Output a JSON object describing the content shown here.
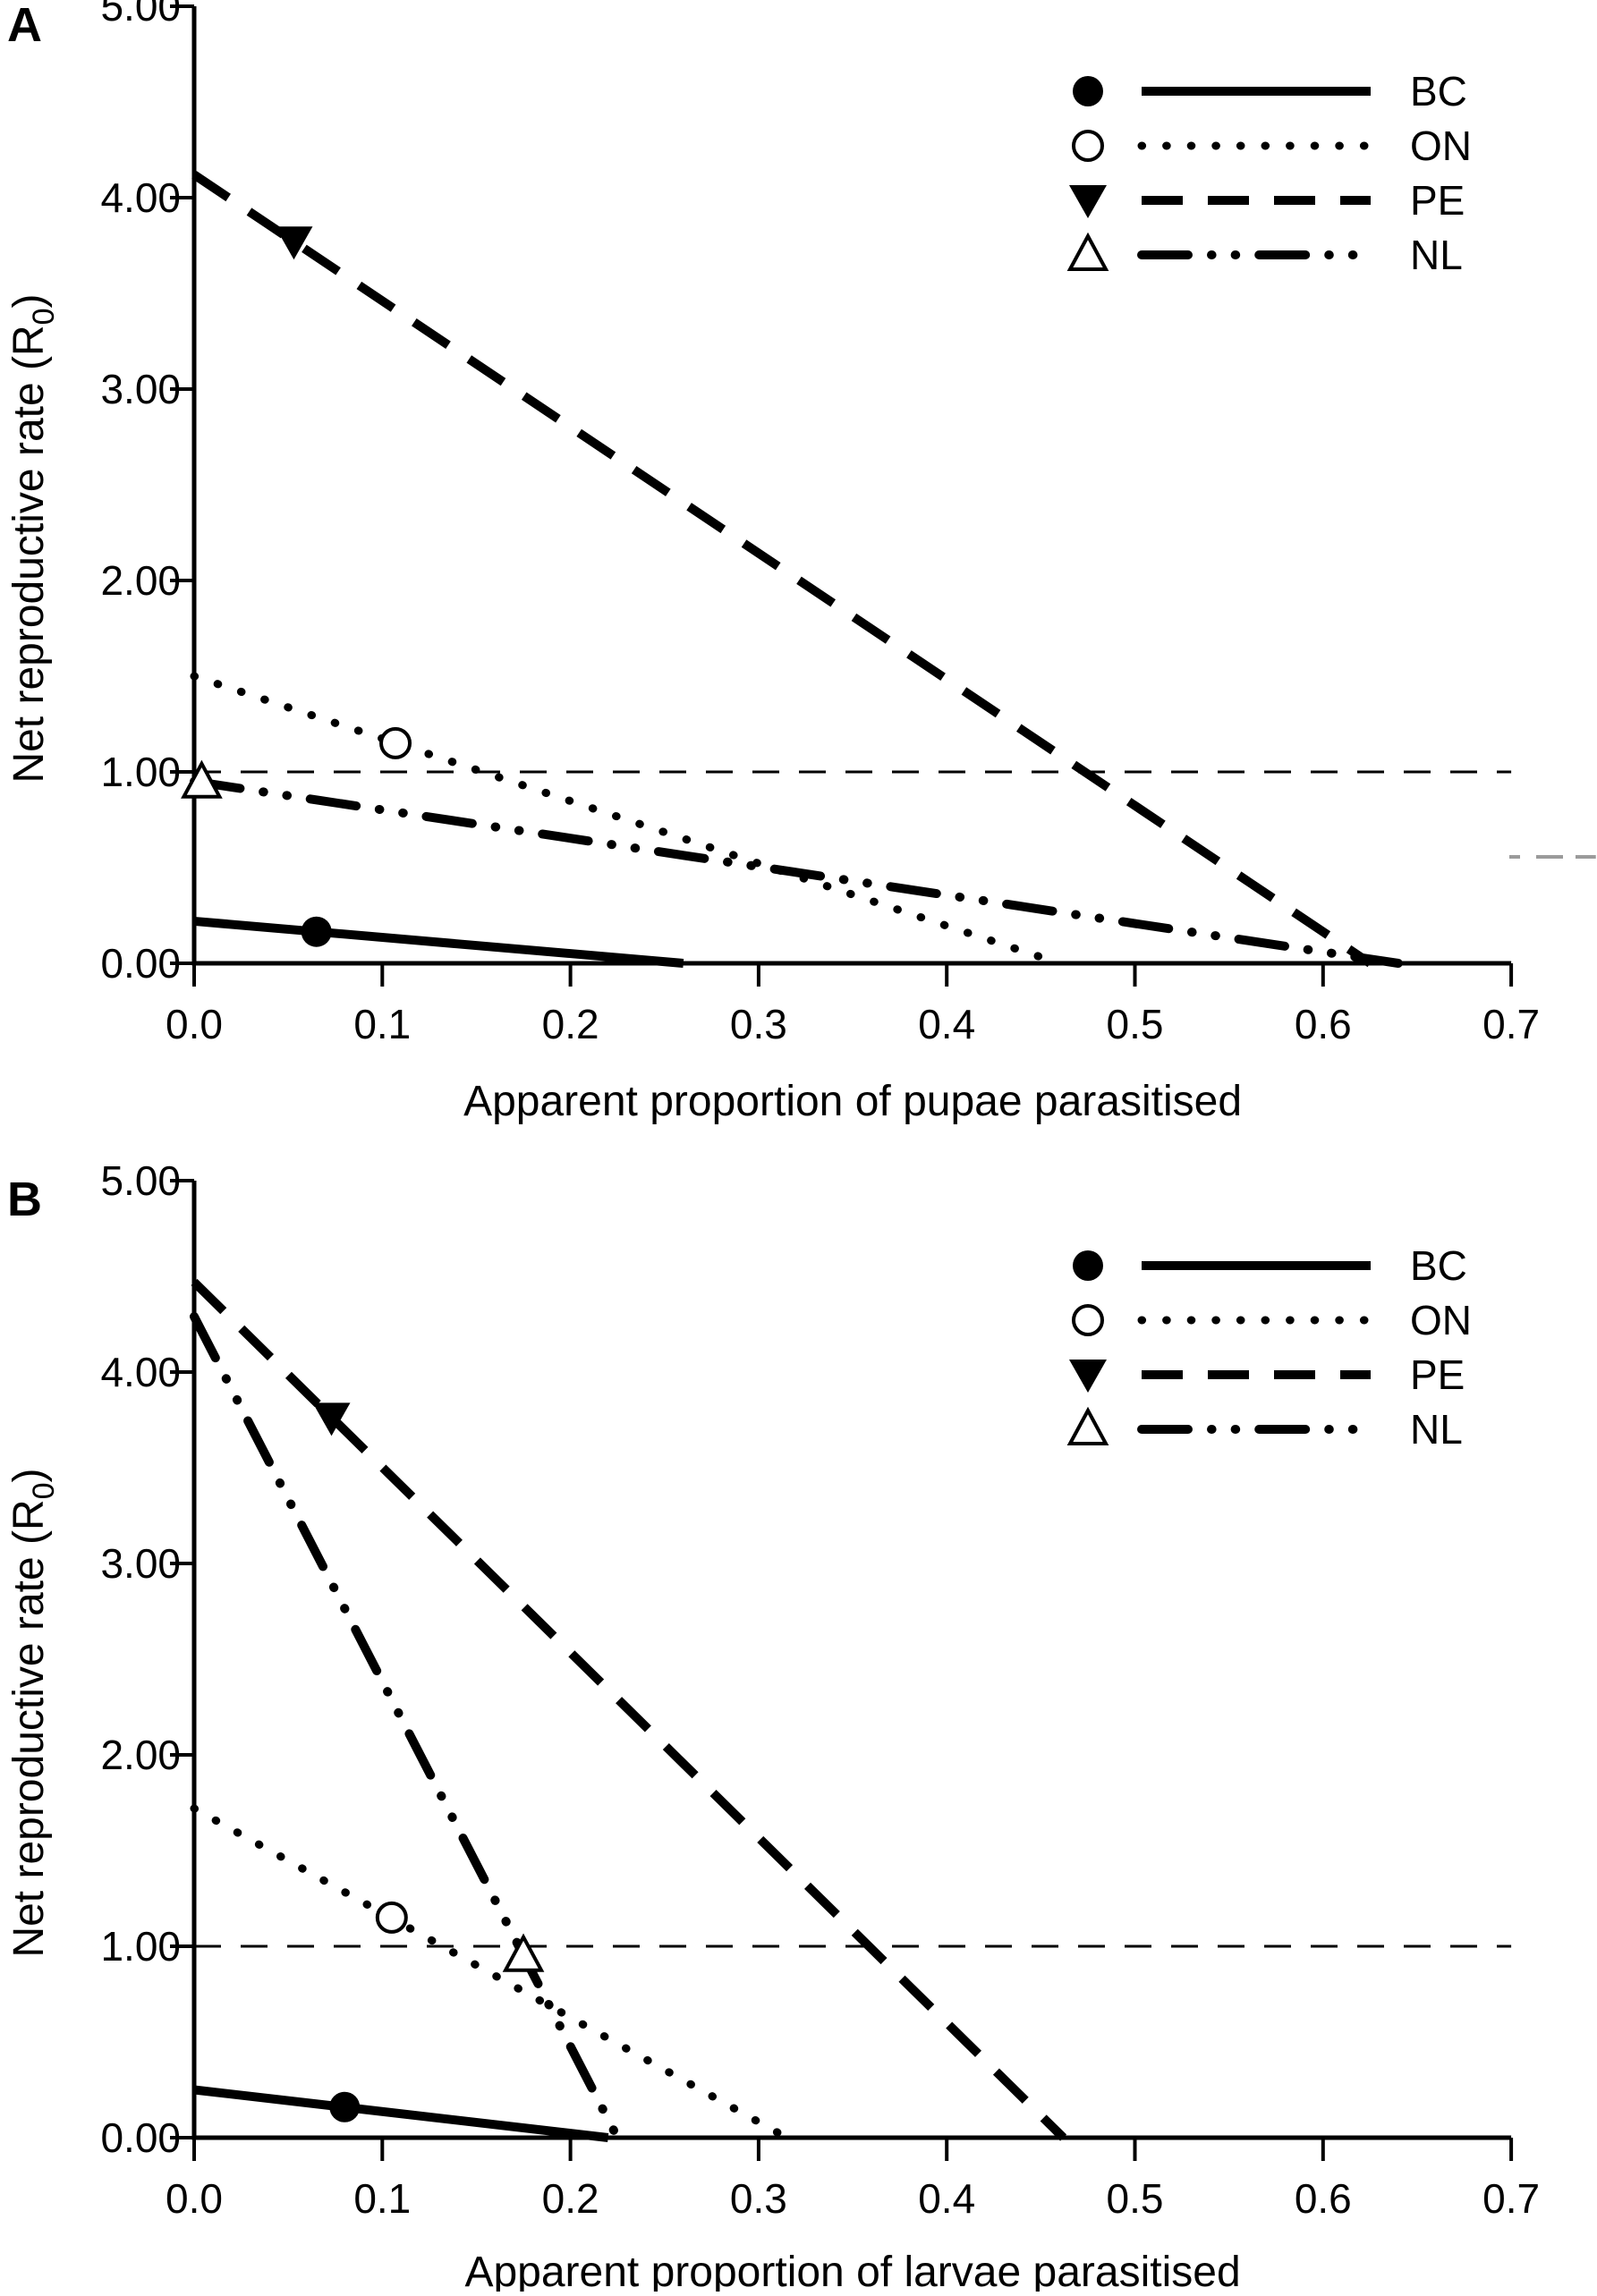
{
  "figure_background": "#ffffff",
  "ink_color": "#000000",
  "stray_dash_color": "#9b9b9b",
  "chart_data": [
    {
      "type": "line",
      "panel_label": "A",
      "xlabel": "Apparent proportion of pupae parasitised",
      "ylabel": "Net reproductive rate (R0)",
      "ylabel_parts": {
        "main": "Net reproductive rate (R",
        "sub": "0",
        "close": ")"
      },
      "xlim": [
        0,
        0.7
      ],
      "ylim": [
        0,
        5
      ],
      "x_ticks": [
        0,
        0.1,
        0.2,
        0.3,
        0.4,
        0.5,
        0.6,
        0.7
      ],
      "x_tick_labels": [
        "0.0",
        "0.1",
        "0.2",
        "0.3",
        "0.4",
        "0.5",
        "0.6",
        "0.7"
      ],
      "y_ticks": [
        0,
        1,
        2,
        3,
        4,
        5
      ],
      "y_tick_labels": [
        "0.00",
        "1.00",
        "2.00",
        "3.00",
        "4.00",
        "5.00"
      ],
      "grid": false,
      "legend_position": "upper right",
      "reference_line": {
        "y": 1.0,
        "style": "dashed"
      },
      "series": [
        {
          "name": "BC",
          "line_style": "solid",
          "marker": "filled-circle",
          "y_intercept": 0.22,
          "x_intercept": 0.26,
          "marker_at": [
            0.065,
            0.165
          ]
        },
        {
          "name": "ON",
          "line_style": "dotted",
          "marker": "open-circle",
          "y_intercept": 1.5,
          "x_intercept": 0.46,
          "marker_at": [
            0.107,
            1.15
          ]
        },
        {
          "name": "PE",
          "line_style": "dashed",
          "marker": "filled-triangle-down",
          "y_intercept": 4.12,
          "x_intercept": 0.625,
          "marker_at": [
            0.053,
            3.77
          ]
        },
        {
          "name": "NL",
          "line_style": "dash-dot-dot",
          "marker": "open-triangle-up",
          "y_intercept": 0.95,
          "x_intercept": 0.64,
          "marker_at": [
            0.004,
            0.945
          ]
        }
      ],
      "stray_gray_dash": {
        "y_value": 0.556,
        "x_from_value": 0.699,
        "x_to_value": 0.745
      }
    },
    {
      "type": "line",
      "panel_label": "B",
      "xlabel": "Apparent proportion of larvae parasitised",
      "ylabel": "Net reproductive rate (R0)",
      "ylabel_parts": {
        "main": "Net reproductive rate (R",
        "sub": "0",
        "close": ")"
      },
      "xlim": [
        0,
        0.7
      ],
      "ylim": [
        0,
        5
      ],
      "x_ticks": [
        0,
        0.1,
        0.2,
        0.3,
        0.4,
        0.5,
        0.6,
        0.7
      ],
      "x_tick_labels": [
        "0.0",
        "0.1",
        "0.2",
        "0.3",
        "0.4",
        "0.5",
        "0.6",
        "0.7"
      ],
      "y_ticks": [
        0,
        1,
        2,
        3,
        4,
        5
      ],
      "y_tick_labels": [
        "0.00",
        "1.00",
        "2.00",
        "3.00",
        "4.00",
        "5.00"
      ],
      "grid": false,
      "legend_position": "upper right",
      "reference_line": {
        "y": 1.0,
        "style": "dashed"
      },
      "series": [
        {
          "name": "BC",
          "line_style": "solid",
          "marker": "filled-circle",
          "y_intercept": 0.25,
          "x_intercept": 0.22,
          "marker_at": [
            0.08,
            0.16
          ]
        },
        {
          "name": "ON",
          "line_style": "dotted",
          "marker": "open-circle",
          "y_intercept": 1.72,
          "x_intercept": 0.315,
          "marker_at": [
            0.105,
            1.15
          ]
        },
        {
          "name": "PE",
          "line_style": "dashed",
          "marker": "filled-triangle-down",
          "y_intercept": 4.47,
          "x_intercept": 0.462,
          "marker_at": [
            0.073,
            3.76
          ]
        },
        {
          "name": "NL",
          "line_style": "dash-dot-dot",
          "marker": "open-triangle-up",
          "y_intercept": 4.29,
          "x_intercept": 0.225,
          "marker_at": [
            0.175,
            0.95
          ]
        }
      ],
      "stray_gray_dash": null
    }
  ],
  "legend_labels": [
    "BC",
    "ON",
    "PE",
    "NL"
  ]
}
